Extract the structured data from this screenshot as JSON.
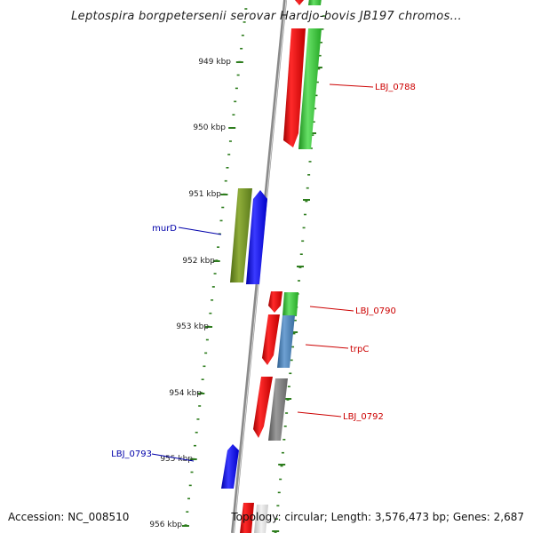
{
  "title": "Leptospira borgpetersenii serovar Hardjo-bovis JB197 chromos...",
  "footer": {
    "accession": "Accession: NC_008510",
    "summary": "Topology: circular; Length: 3,576,473 bp; Genes: 2,687"
  },
  "colors": {
    "backbone": "#8a8a8a",
    "tick": "#2e7d1e",
    "forward_label": "#cc0000",
    "reverse_label": "#0000aa"
  },
  "scale_labels": [
    "949 kbp",
    "950 kbp",
    "951 kbp",
    "952 kbp",
    "953 kbp",
    "954 kbp",
    "955 kbp",
    "956 kbp"
  ],
  "gene_labels": [
    {
      "text": "LBJ_0788",
      "color": "#cc0000"
    },
    {
      "text": "murD",
      "color": "#0000aa"
    },
    {
      "text": "LBJ_0790",
      "color": "#cc0000"
    },
    {
      "text": "trpC",
      "color": "#cc0000"
    },
    {
      "text": "LBJ_0792",
      "color": "#cc0000"
    },
    {
      "text": "LBJ_0793",
      "color": "#0000aa"
    }
  ]
}
